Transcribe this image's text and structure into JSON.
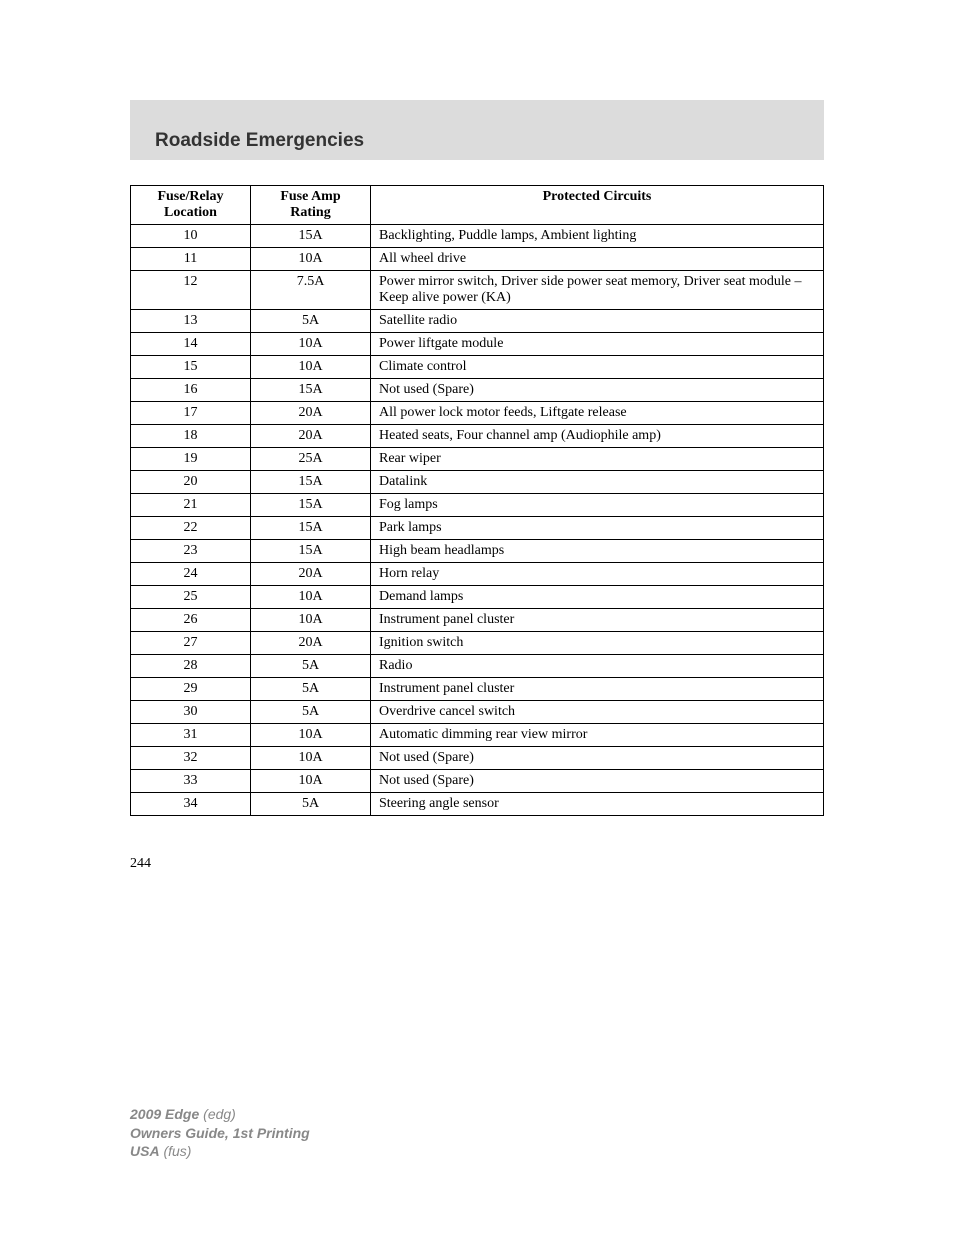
{
  "header": {
    "title": "Roadside Emergencies"
  },
  "table": {
    "columns": {
      "location_line1": "Fuse/Relay",
      "location_line2": "Location",
      "rating_line1": "Fuse Amp",
      "rating_line2": "Rating",
      "circuits": "Protected Circuits"
    },
    "rows": [
      {
        "location": "10",
        "rating": "15A",
        "circuits": "Backlighting, Puddle lamps, Ambient lighting"
      },
      {
        "location": "11",
        "rating": "10A",
        "circuits": "All wheel drive"
      },
      {
        "location": "12",
        "rating": "7.5A",
        "circuits": "Power mirror switch, Driver side power seat memory, Driver seat module – Keep alive power (KA)"
      },
      {
        "location": "13",
        "rating": "5A",
        "circuits": "Satellite radio"
      },
      {
        "location": "14",
        "rating": "10A",
        "circuits": "Power liftgate module"
      },
      {
        "location": "15",
        "rating": "10A",
        "circuits": "Climate control"
      },
      {
        "location": "16",
        "rating": "15A",
        "circuits": "Not used (Spare)"
      },
      {
        "location": "17",
        "rating": "20A",
        "circuits": "All power lock motor feeds, Liftgate release"
      },
      {
        "location": "18",
        "rating": "20A",
        "circuits": "Heated seats, Four channel amp (Audiophile amp)"
      },
      {
        "location": "19",
        "rating": "25A",
        "circuits": "Rear wiper"
      },
      {
        "location": "20",
        "rating": "15A",
        "circuits": "Datalink"
      },
      {
        "location": "21",
        "rating": "15A",
        "circuits": "Fog lamps"
      },
      {
        "location": "22",
        "rating": "15A",
        "circuits": "Park lamps"
      },
      {
        "location": "23",
        "rating": "15A",
        "circuits": "High beam headlamps"
      },
      {
        "location": "24",
        "rating": "20A",
        "circuits": "Horn relay"
      },
      {
        "location": "25",
        "rating": "10A",
        "circuits": "Demand lamps"
      },
      {
        "location": "26",
        "rating": "10A",
        "circuits": "Instrument panel cluster"
      },
      {
        "location": "27",
        "rating": "20A",
        "circuits": "Ignition switch"
      },
      {
        "location": "28",
        "rating": "5A",
        "circuits": "Radio"
      },
      {
        "location": "29",
        "rating": "5A",
        "circuits": "Instrument panel cluster"
      },
      {
        "location": "30",
        "rating": "5A",
        "circuits": "Overdrive cancel switch"
      },
      {
        "location": "31",
        "rating": "10A",
        "circuits": "Automatic dimming rear view mirror"
      },
      {
        "location": "32",
        "rating": "10A",
        "circuits": "Not used (Spare)"
      },
      {
        "location": "33",
        "rating": "10A",
        "circuits": "Not used (Spare)"
      },
      {
        "location": "34",
        "rating": "5A",
        "circuits": "Steering angle sensor"
      }
    ]
  },
  "page_number": "244",
  "footer": {
    "line1_bold": "2009 Edge",
    "line1_italic": " (edg)",
    "line2": "Owners Guide, 1st Printing",
    "line3_bold": "USA",
    "line3_italic": " (fus)"
  }
}
